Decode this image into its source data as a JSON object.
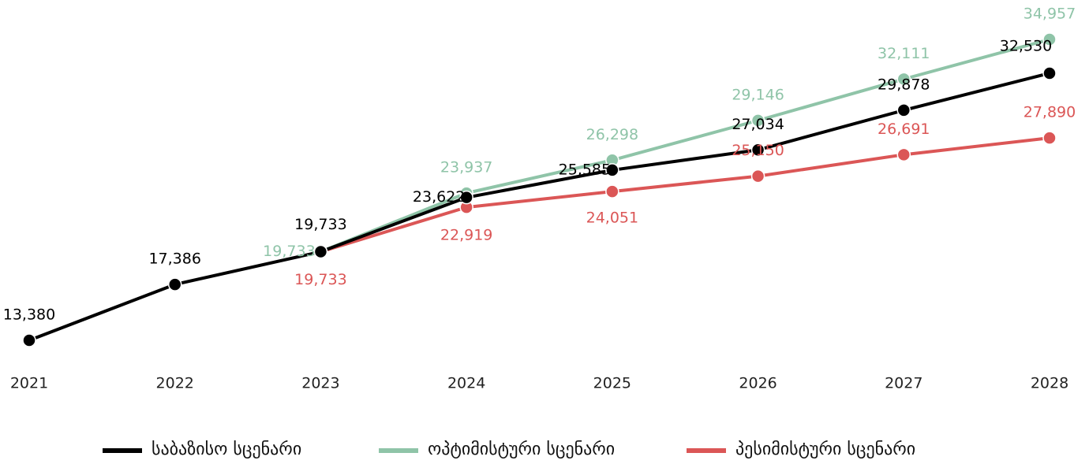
{
  "chart_data": {
    "type": "line",
    "categories": [
      "2021",
      "2022",
      "2023",
      "2024",
      "2025",
      "2026",
      "2027",
      "2028"
    ],
    "series": [
      {
        "name": "საბაზისო სცენარი",
        "color": "#000000",
        "values": [
          13380,
          17386,
          19733,
          23622,
          25585,
          27034,
          29878,
          32530
        ],
        "value_labels": [
          "13,380",
          "17,386",
          "19,733",
          "23,622",
          "25,585",
          "27,034",
          "29,878",
          "32,530"
        ]
      },
      {
        "name": "ოპტიმისტური სცენარი",
        "color": "#8fc4a8",
        "values": [
          null,
          null,
          19733,
          23937,
          26298,
          29146,
          32111,
          34957
        ],
        "value_labels": [
          null,
          null,
          "19,733",
          "23,937",
          "26,298",
          "29,146",
          "32,111",
          "34,957"
        ]
      },
      {
        "name": "პესიმისტური სცენარი",
        "color": "#db5656",
        "values": [
          null,
          null,
          19733,
          22919,
          24051,
          25150,
          26691,
          27890
        ],
        "value_labels": [
          null,
          null,
          "19,733",
          "22,919",
          "24,051",
          "25,150",
          "26,691",
          "27,890"
        ]
      }
    ],
    "legend": "bottom"
  }
}
